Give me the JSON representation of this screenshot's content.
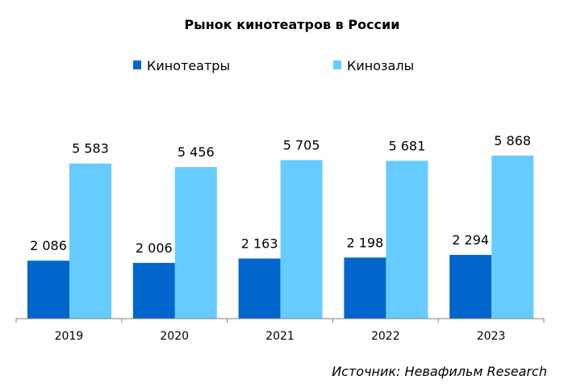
{
  "chart_data": {
    "type": "bar",
    "title": "Рынок кинотеатров в России",
    "xlabel": "",
    "ylabel": "",
    "categories": [
      "2019",
      "2020",
      "2021",
      "2022",
      "2023"
    ],
    "series": [
      {
        "name": "Кинотеатры",
        "values": [
          2086,
          2006,
          2163,
          2198,
          2294
        ],
        "labels": [
          "2 086",
          "2 006",
          "2 163",
          "2 198",
          "2 294"
        ],
        "color": "#0066cc"
      },
      {
        "name": "Кинозалы",
        "values": [
          5583,
          5456,
          5705,
          5681,
          5868
        ],
        "labels": [
          "5 583",
          "5 456",
          "5 705",
          "5 681",
          "5 868"
        ],
        "color": "#66ccff"
      }
    ],
    "ylim": [
      0,
      8130
    ],
    "legend_position": "top",
    "grid": false,
    "axis_color": "#808080"
  },
  "source": "Источник: Невафильм Research"
}
